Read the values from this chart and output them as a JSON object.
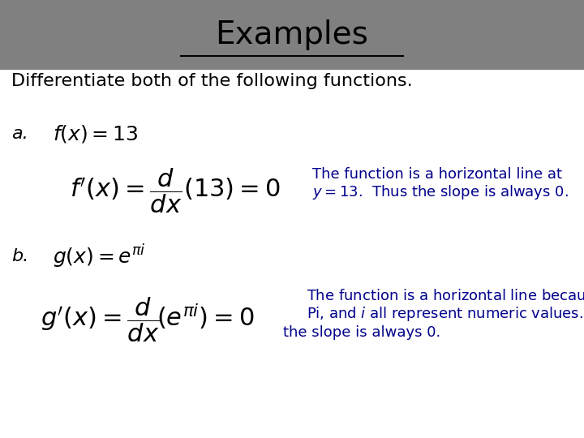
{
  "title": "Examples",
  "title_fontsize": 28,
  "title_bg_color": "#808080",
  "title_text_color": "#000000",
  "body_bg_color": "#ffffff",
  "subtitle": "Differentiate both of the following functions.",
  "subtitle_fontsize": 16,
  "part_a_label": "a.",
  "part_b_label": "b.",
  "note_color": "#00008B",
  "label_fontsize": 16,
  "formula_fontsize": 20,
  "note_fontsize": 13,
  "part_a_note_line1": "The function is a horizontal line at",
  "part_a_note_line2": "  Thus the slope is always 0.",
  "part_b_note_line1": "The function is a horizontal line because ",
  "part_b_note_line2": "Pi, and  all represent numeric values.  Thus",
  "part_b_note_line3": "the slope is always 0."
}
